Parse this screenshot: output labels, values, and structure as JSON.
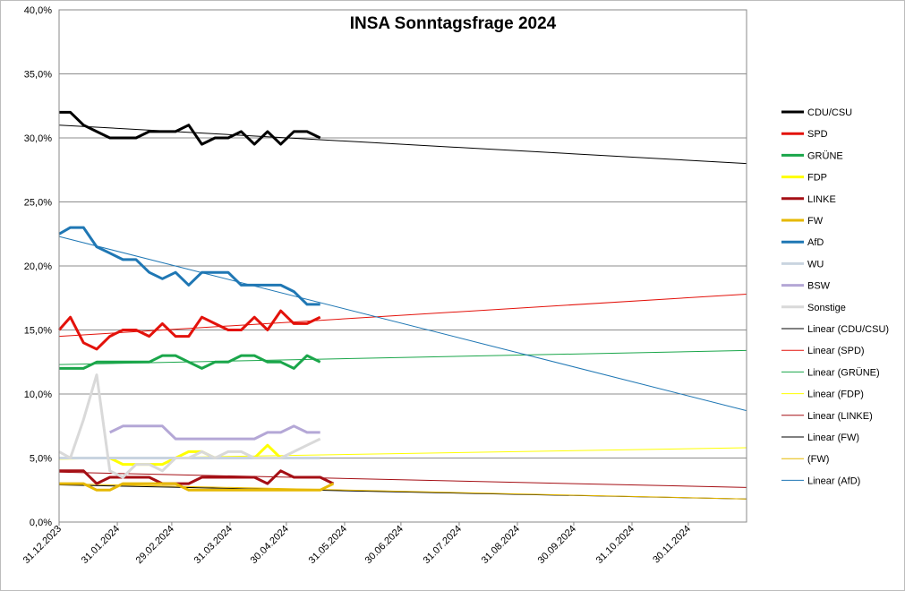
{
  "chart_data": {
    "type": "line",
    "title": "INSA Sonntagsfrage  2024",
    "xlabel": "",
    "ylabel": "",
    "x_range": [
      "31.12.2023",
      "31.12.2024"
    ],
    "ylim": [
      0,
      40
    ],
    "y_ticks": [
      "0,0%",
      "5,0%",
      "10,0%",
      "15,0%",
      "20,0%",
      "25,0%",
      "30,0%",
      "35,0%",
      "40,0%"
    ],
    "x_ticks": [
      "31.12.2023",
      "31.01.2024",
      "29.02.2024",
      "31.03.2024",
      "30.04.2024",
      "31.05.2024",
      "30.06.2024",
      "31.07.2024",
      "31.08.2024",
      "30.09.2024",
      "31.10.2024",
      "30.11.2024"
    ],
    "grid": "horizontal",
    "legend_position": "right",
    "dates": [
      "31.12.2023",
      "06.01.2024",
      "13.01.2024",
      "20.01.2024",
      "27.01.2024",
      "03.02.2024",
      "10.02.2024",
      "17.02.2024",
      "24.02.2024",
      "02.03.2024",
      "09.03.2024",
      "16.03.2024",
      "23.03.2024",
      "30.03.2024",
      "06.04.2024",
      "13.04.2024",
      "20.04.2024",
      "27.04.2024",
      "04.05.2024",
      "11.05.2024",
      "18.05.2024",
      "25.05.2024"
    ],
    "series": [
      {
        "name": "CDU/CSU",
        "color": "#000000",
        "values": [
          32,
          32,
          31,
          30.5,
          30,
          30,
          30,
          30.5,
          30.5,
          30.5,
          31,
          29.5,
          30,
          30,
          30.5,
          29.5,
          30.5,
          29.5,
          30.5,
          30.5,
          30,
          null
        ]
      },
      {
        "name": "SPD",
        "color": "#e3120b",
        "values": [
          15,
          16,
          14,
          13.5,
          14.5,
          15,
          15,
          14.5,
          15.5,
          14.5,
          14.5,
          16,
          15.5,
          15,
          15,
          16,
          15,
          16.5,
          15.5,
          15.5,
          16,
          null
        ]
      },
      {
        "name": "GRÜNE",
        "color": "#1aa64a",
        "values": [
          12,
          12,
          12,
          12.5,
          12.5,
          12.5,
          12.5,
          12.5,
          13,
          13,
          12.5,
          12,
          12.5,
          12.5,
          13,
          13,
          12.5,
          12.5,
          12,
          13,
          12.5,
          null
        ]
      },
      {
        "name": "FDP",
        "color": "#ffff00",
        "values": [
          5,
          5,
          5,
          5,
          5,
          4.5,
          4.5,
          4.5,
          4.5,
          5,
          5.5,
          5.5,
          5,
          5,
          5,
          5,
          6,
          5,
          5,
          5,
          5,
          null
        ]
      },
      {
        "name": "LINKE",
        "color": "#a50f15",
        "values": [
          4,
          4,
          4,
          3,
          3.5,
          3.5,
          3.5,
          3.5,
          3,
          3,
          3,
          3.5,
          3.5,
          3.5,
          3.5,
          3.5,
          3,
          4,
          3.5,
          3.5,
          3.5,
          3
        ]
      },
      {
        "name": "FW",
        "color": "#e6b800",
        "values": [
          3,
          3,
          3,
          2.5,
          2.5,
          3,
          3,
          3,
          3,
          3,
          2.5,
          2.5,
          2.5,
          2.5,
          2.5,
          2.5,
          2.5,
          2.5,
          2.5,
          2.5,
          2.5,
          3
        ]
      },
      {
        "name": "AfD",
        "color": "#1f77b4",
        "values": [
          22.5,
          23,
          23,
          21.5,
          21,
          20.5,
          20.5,
          19.5,
          19,
          19.5,
          18.5,
          19.5,
          19.5,
          19.5,
          18.5,
          18.5,
          18.5,
          18.5,
          18,
          17,
          17,
          null
        ]
      },
      {
        "name": "WU",
        "color": "#c9d4e0",
        "values": [
          5,
          5,
          5,
          5,
          5,
          5,
          5,
          5,
          5,
          5,
          5,
          5,
          5,
          5,
          5,
          5,
          5,
          5,
          5,
          5,
          5,
          null
        ]
      },
      {
        "name": "BSW",
        "color": "#b4a7d6",
        "values": [
          null,
          null,
          null,
          null,
          7,
          7.5,
          7.5,
          7.5,
          7.5,
          6.5,
          6.5,
          6.5,
          6.5,
          6.5,
          6.5,
          6.5,
          7,
          7,
          7.5,
          7,
          7,
          null
        ]
      },
      {
        "name": "Sonstige",
        "color": "#d9d9d9",
        "values": [
          5.5,
          5,
          8,
          11.5,
          4,
          3.5,
          4.5,
          4.5,
          4,
          5,
          5,
          5.5,
          5,
          5.5,
          5.5,
          5,
          5,
          5,
          5.5,
          6,
          6.5,
          null
        ]
      }
    ],
    "trendlines": [
      {
        "name": "Linear (CDU/CSU)",
        "color": "#000000",
        "start": [
          "31.12.2023",
          31.0
        ],
        "end": [
          "31.12.2024",
          28.0
        ]
      },
      {
        "name": "Linear (SPD)",
        "color": "#e3120b",
        "start": [
          "31.12.2023",
          14.5
        ],
        "end": [
          "31.12.2024",
          17.8
        ]
      },
      {
        "name": "Linear (GRÜNE)",
        "color": "#1aa64a",
        "start": [
          "31.12.2023",
          12.3
        ],
        "end": [
          "31.12.2024",
          13.4
        ]
      },
      {
        "name": "Linear (FDP)",
        "color": "#ffff00",
        "start": [
          "31.12.2023",
          4.9
        ],
        "end": [
          "31.12.2024",
          5.8
        ]
      },
      {
        "name": "Linear (LINKE)",
        "color": "#a50f15",
        "start": [
          "31.12.2023",
          3.9
        ],
        "end": [
          "31.12.2024",
          2.7
        ]
      },
      {
        "name": "Linear (FW)",
        "color": "#000000",
        "start": [
          "31.12.2023",
          2.9
        ],
        "end": [
          "31.12.2024",
          1.8
        ]
      },
      {
        "name": "(FW)",
        "color": "#e6b800",
        "start": [
          "31.12.2023",
          3.0
        ],
        "end": [
          "31.12.2024",
          1.8
        ]
      },
      {
        "name": "Linear (AfD)",
        "color": "#1f77b4",
        "start": [
          "31.12.2023",
          22.3
        ],
        "end": [
          "31.12.2024",
          8.7
        ]
      }
    ]
  }
}
